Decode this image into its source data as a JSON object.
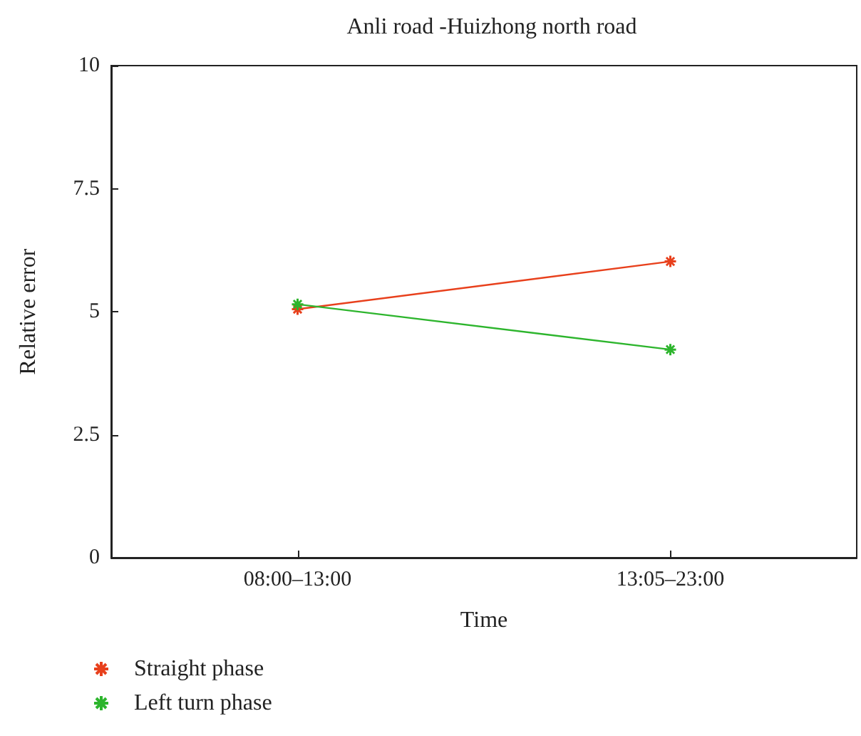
{
  "chart_data": {
    "type": "line",
    "title": "Anli road -Huizhong north road",
    "xlabel": "Time",
    "ylabel": "Relative error",
    "categories": [
      "08:00–13:00",
      "13:05–23:00"
    ],
    "series": [
      {
        "name": "Straight phase",
        "color": "#e8401c",
        "values": [
          5.05,
          6.02
        ]
      },
      {
        "name": "Left turn phase",
        "color": "#2db52d",
        "values": [
          5.15,
          4.23
        ]
      }
    ],
    "ylim": [
      0,
      10
    ],
    "yticks": [
      0,
      2.5,
      5,
      7.5,
      10
    ],
    "grid": false,
    "legend": "bottom left",
    "marker": "cross",
    "line_style": "solid"
  }
}
